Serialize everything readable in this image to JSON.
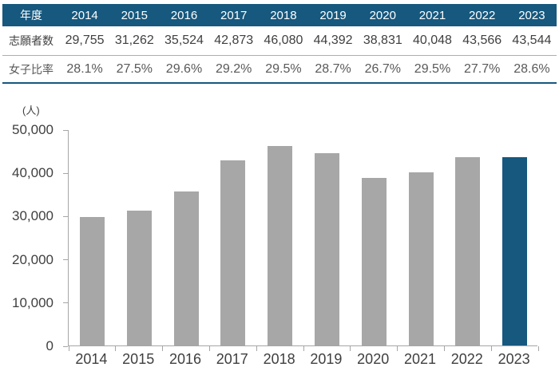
{
  "colors": {
    "accent": "#16587E",
    "bar_gray": "#A7A7A7",
    "axis_gray": "#A6A6A6",
    "header_text": "#FFFFFF",
    "body_text": "#404040",
    "ratio_text": "#595959"
  },
  "table": {
    "header_label": "年度",
    "years": [
      "2014",
      "2015",
      "2016",
      "2017",
      "2018",
      "2019",
      "2020",
      "2021",
      "2022",
      "2023"
    ],
    "rows": [
      {
        "label": "志願者数",
        "values": [
          "29,755",
          "31,262",
          "35,524",
          "42,873",
          "46,080",
          "44,392",
          "38,831",
          "40,048",
          "43,566",
          "43,544"
        ]
      },
      {
        "label": "女子比率",
        "values": [
          "28.1%",
          "27.5%",
          "29.6%",
          "29.2%",
          "29.5%",
          "28.7%",
          "26.7%",
          "29.5%",
          "27.7%",
          "28.6%"
        ]
      }
    ]
  },
  "chart_data": {
    "type": "bar",
    "title": "",
    "xlabel": "",
    "ylabel": "(人)",
    "unit_label": "(人)",
    "categories": [
      "2014",
      "2015",
      "2016",
      "2017",
      "2018",
      "2019",
      "2020",
      "2021",
      "2022",
      "2023"
    ],
    "values": [
      29755,
      31262,
      35524,
      42873,
      46080,
      44392,
      38831,
      40048,
      43566,
      43544
    ],
    "ylim": [
      0,
      50000
    ],
    "ytick_interval": 10000,
    "ytick_labels": [
      "0",
      "10,000",
      "20,000",
      "30,000",
      "40,000",
      "50,000"
    ],
    "highlight_index": 9,
    "bar_color": "#A7A7A7",
    "highlight_color": "#16587E",
    "grid": false,
    "legend": "none"
  }
}
